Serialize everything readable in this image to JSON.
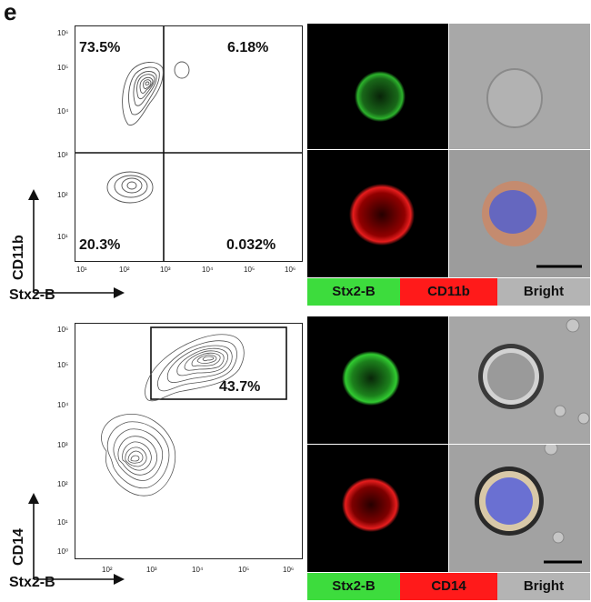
{
  "panel_label": "e",
  "top_plot": {
    "x_axis_title": "Stx2-B",
    "y_axis_title": "CD11b",
    "x_ticks": [
      "10¹",
      "10²",
      "10³",
      "10⁴",
      "10⁵",
      "10⁶"
    ],
    "y_ticks": [
      "10⁶",
      "10⁵",
      "10⁴",
      "10³",
      "10²",
      "10¹"
    ],
    "quadrants": {
      "upper_left": "73.5%",
      "upper_right": "6.18%",
      "lower_left": "20.3%",
      "lower_right": "0.032%"
    }
  },
  "bottom_plot": {
    "x_axis_title": "Stx2-B",
    "y_axis_title": "CD14",
    "x_ticks": [
      "10²",
      "10³",
      "10⁴",
      "10⁵",
      "10⁶"
    ],
    "y_ticks": [
      "10⁶",
      "10⁵",
      "10⁴",
      "10³",
      "10²",
      "10¹",
      "10⁰"
    ],
    "gate_percent": "43.7%"
  },
  "top_legend": [
    {
      "label": "Stx2-B",
      "color": "#3ddc3d"
    },
    {
      "label": "CD11b",
      "color": "#ff1a1a"
    },
    {
      "label": "Bright",
      "color": "#b4b4b4"
    }
  ],
  "bottom_legend": [
    {
      "label": "Stx2-B",
      "color": "#3ddc3d"
    },
    {
      "label": "CD14",
      "color": "#ff1a1a"
    },
    {
      "label": "Bright",
      "color": "#b4b4b4"
    }
  ]
}
